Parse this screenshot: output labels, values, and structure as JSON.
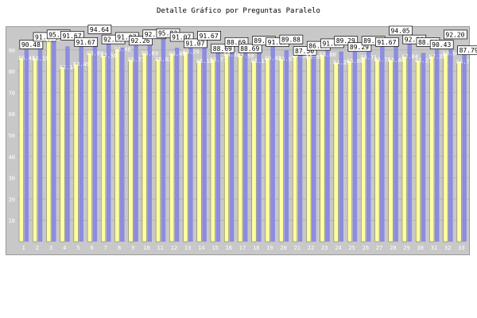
{
  "title": "Detalle Gráfico por Preguntas Paralelo",
  "colors": {
    "frame": "#c8c8c8",
    "series_a": "#ffffa0",
    "series_b": "#8c8ce0",
    "grid": "#b4b4b4",
    "tick_text": "#ffffff"
  },
  "chart_data": {
    "type": "bar",
    "title": "Detalle Gráfico por Preguntas Paralelo",
    "xlabel": "",
    "ylabel": "",
    "ylim": [
      0,
      100
    ],
    "yticks": [
      10,
      20,
      30,
      40,
      50,
      60,
      70,
      80,
      90
    ],
    "grid": true,
    "legend": "none",
    "categories": [
      "1",
      "2",
      "3",
      "4",
      "5",
      "6",
      "7",
      "8",
      "9",
      "10",
      "11",
      "12",
      "13",
      "14",
      "15",
      "16",
      "17",
      "18",
      "19",
      "20",
      "21",
      "22",
      "23",
      "24",
      "25",
      "26",
      "27",
      "28",
      "29",
      "30",
      "31",
      "32",
      "33"
    ],
    "series": [
      {
        "values": [
          86.43,
          86.19,
          95.24,
          82.14,
          83.49,
          88.69,
          87.5,
          90.48,
          85.71,
          88.69,
          85.83,
          88.48,
          89.29,
          85.12,
          85.71,
          88.1,
          87.5,
          85.11,
          86.43,
          85.97,
          87.54,
          86.9,
          88.0,
          84.29,
          85.06,
          86.71,
          85.71,
          85.48,
          87.04,
          85.27,
          87.2,
          88.64,
          84.77
        ]
      },
      {
        "values": [
          90.48,
          91.07,
          95.24,
          91.67,
          91.67,
          94.64,
          92.86,
          91.07,
          92.26,
          92.26,
          95.83,
          91.07,
          91.07,
          91.67,
          88.69,
          88.69,
          88.69,
          89.29,
          91.67,
          89.88,
          87.5,
          86.9,
          91.07,
          89.29,
          89.29,
          89.29,
          91.67,
          94.05,
          92.86,
          88.64,
          90.43,
          92.2,
          87.79
        ]
      }
    ]
  }
}
